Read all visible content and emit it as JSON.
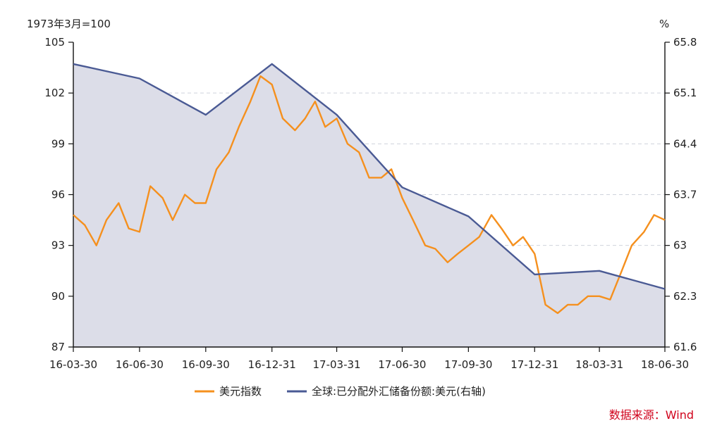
{
  "chart_data": {
    "type": "line",
    "left_unit": "1973年3月=100",
    "right_unit": "%",
    "source": "数据来源：Wind",
    "x_ticks": [
      "16-03-30",
      "16-06-30",
      "16-09-30",
      "16-12-31",
      "17-03-31",
      "17-06-30",
      "17-09-30",
      "17-12-31",
      "18-03-31",
      "18-06-30"
    ],
    "left_axis": {
      "min": 87,
      "max": 105,
      "ticks": [
        "87",
        "90",
        "93",
        "96",
        "99",
        "102",
        "105"
      ]
    },
    "right_axis": {
      "min": 61.6,
      "max": 65.8,
      "ticks": [
        "61.6",
        "62.3",
        "63",
        "63.7",
        "64.4",
        "65.1",
        "65.8"
      ]
    },
    "grid": true,
    "legend_position": "bottom",
    "series": [
      {
        "name": "美元指数",
        "axis": "left",
        "color": "#f5901e",
        "x": [
          "16-03-30",
          "16-04-15",
          "16-05-01",
          "16-05-15",
          "16-06-01",
          "16-06-15",
          "16-06-30",
          "16-07-15",
          "16-08-01",
          "16-08-15",
          "16-09-01",
          "16-09-15",
          "16-09-30",
          "16-10-15",
          "16-11-01",
          "16-11-15",
          "16-12-01",
          "16-12-15",
          "16-12-31",
          "17-01-15",
          "17-02-01",
          "17-02-15",
          "17-03-01",
          "17-03-15",
          "17-03-31",
          "17-04-15",
          "17-05-01",
          "17-05-15",
          "17-06-01",
          "17-06-15",
          "17-06-30",
          "17-07-15",
          "17-08-01",
          "17-08-15",
          "17-09-01",
          "17-09-15",
          "17-09-30",
          "17-10-15",
          "17-11-01",
          "17-11-15",
          "17-12-01",
          "17-12-15",
          "17-12-31",
          "18-01-15",
          "18-02-01",
          "18-02-15",
          "18-03-01",
          "18-03-15",
          "18-03-31",
          "18-04-15",
          "18-05-01",
          "18-05-15",
          "18-06-01",
          "18-06-15",
          "18-06-30"
        ],
        "values": [
          94.8,
          94.2,
          93.0,
          94.5,
          95.5,
          94.0,
          93.8,
          96.5,
          95.8,
          94.5,
          96.0,
          95.5,
          95.5,
          97.5,
          98.5,
          100.0,
          101.5,
          103.0,
          102.5,
          100.5,
          99.8,
          100.5,
          101.5,
          100.0,
          100.5,
          99.0,
          98.5,
          97.0,
          97.0,
          97.5,
          95.8,
          94.5,
          93.0,
          92.8,
          92.0,
          92.5,
          93.0,
          93.5,
          94.8,
          94.0,
          93.0,
          93.5,
          92.5,
          89.5,
          89.0,
          89.5,
          89.5,
          90.0,
          90.0,
          89.8,
          91.5,
          93.0,
          93.8,
          94.8,
          94.5
        ]
      },
      {
        "name": "全球:已分配外汇储备份额:美元(右轴)",
        "axis": "right",
        "color": "#4a5a94",
        "fill": "#dcdde8",
        "x": [
          "16-03-30",
          "16-06-30",
          "16-09-30",
          "16-12-31",
          "17-03-31",
          "17-06-30",
          "17-09-30",
          "17-12-31",
          "18-03-31",
          "18-06-30"
        ],
        "values": [
          65.5,
          65.3,
          64.8,
          65.5,
          64.8,
          63.8,
          63.4,
          62.6,
          62.65,
          62.4
        ]
      }
    ]
  }
}
